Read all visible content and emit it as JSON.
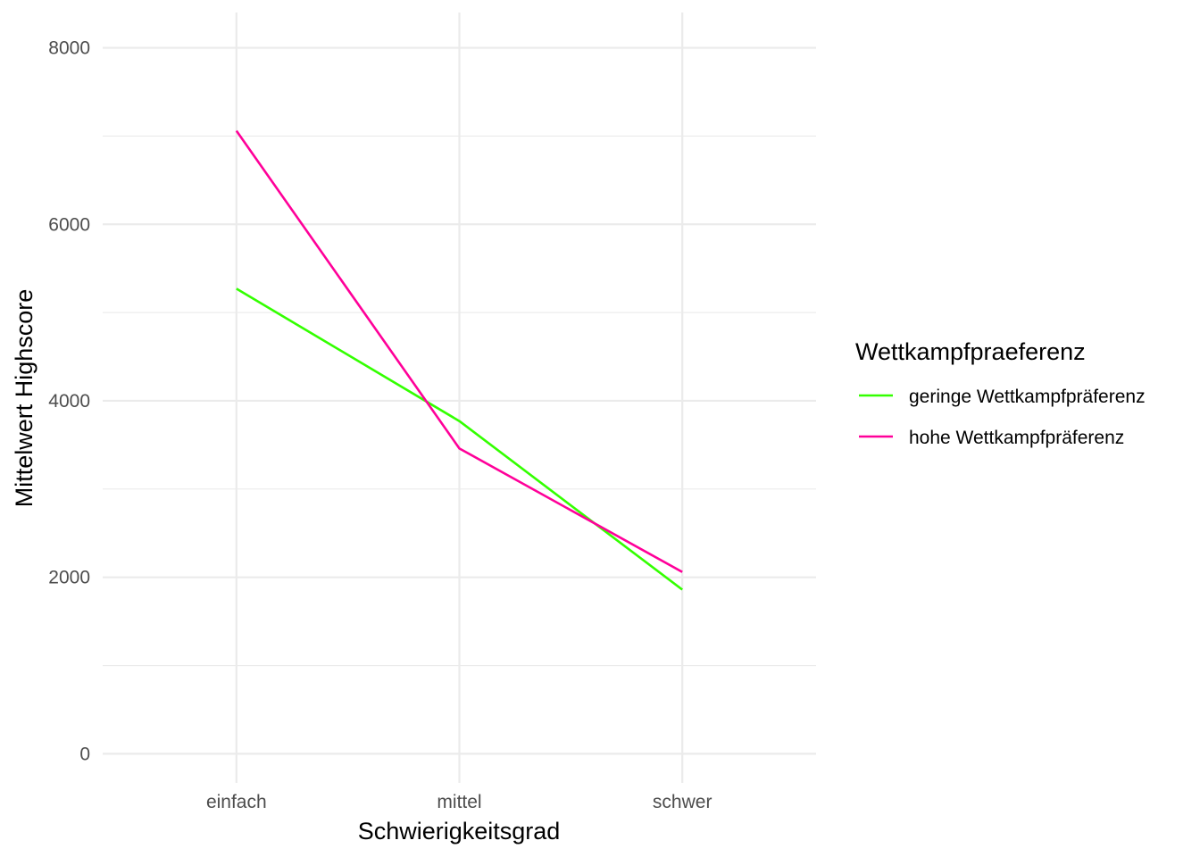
{
  "chart_data": {
    "type": "line",
    "categories": [
      "einfach",
      "mittel",
      "schwer"
    ],
    "xlabel": "Schwierigkeitsgrad",
    "ylabel": "Mittelwert Highscore",
    "ylim": [
      -330,
      8400
    ],
    "yticks": [
      0,
      2000,
      4000,
      6000,
      8000
    ],
    "yminor": [
      1000,
      3000,
      5000,
      7000
    ],
    "grid": true,
    "legend": {
      "title": "Wettkampfpraeferenz",
      "position": "right"
    },
    "series": [
      {
        "name": "geringe Wettkampfpräferenz",
        "color": "#33FF00",
        "values": [
          5270,
          3770,
          1860
        ]
      },
      {
        "name": "hohe Wettkampfpräferenz",
        "color": "#FF0099",
        "values": [
          7060,
          3460,
          2060
        ]
      }
    ]
  }
}
